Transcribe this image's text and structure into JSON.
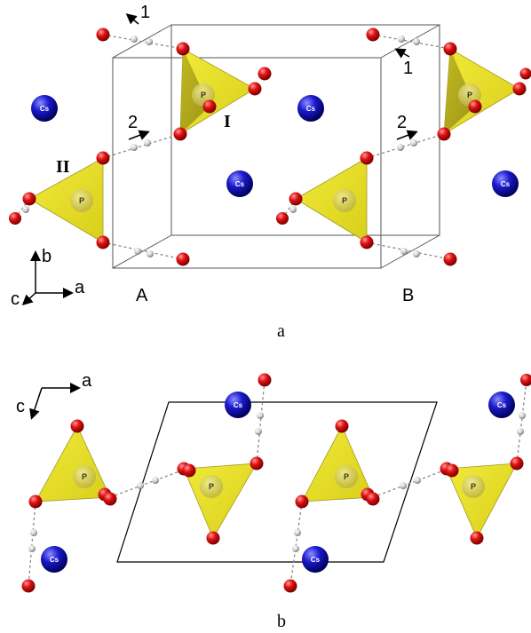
{
  "colors": {
    "oxygen": "#e01010",
    "cesium": "#1a1acc",
    "tetrahedron": "#e8e020",
    "hydrogen": "#c8c8c8",
    "cell": "#555555"
  },
  "panel_a": {
    "label": "a",
    "atoms": {
      "phosphorus": "P",
      "cesium": "Cs"
    },
    "site_labels": {
      "site_1": "I",
      "site_2": "II"
    },
    "arrow_labels": {
      "one": "1",
      "two": "2"
    },
    "points": {
      "left": "A",
      "right": "B"
    },
    "axes": {
      "b": "b",
      "c": "c",
      "a": "a"
    }
  },
  "panel_b": {
    "label": "b",
    "atoms": {
      "phosphorus": "P",
      "cesium": "Cs"
    },
    "axes": {
      "a": "a",
      "c": "c"
    }
  }
}
